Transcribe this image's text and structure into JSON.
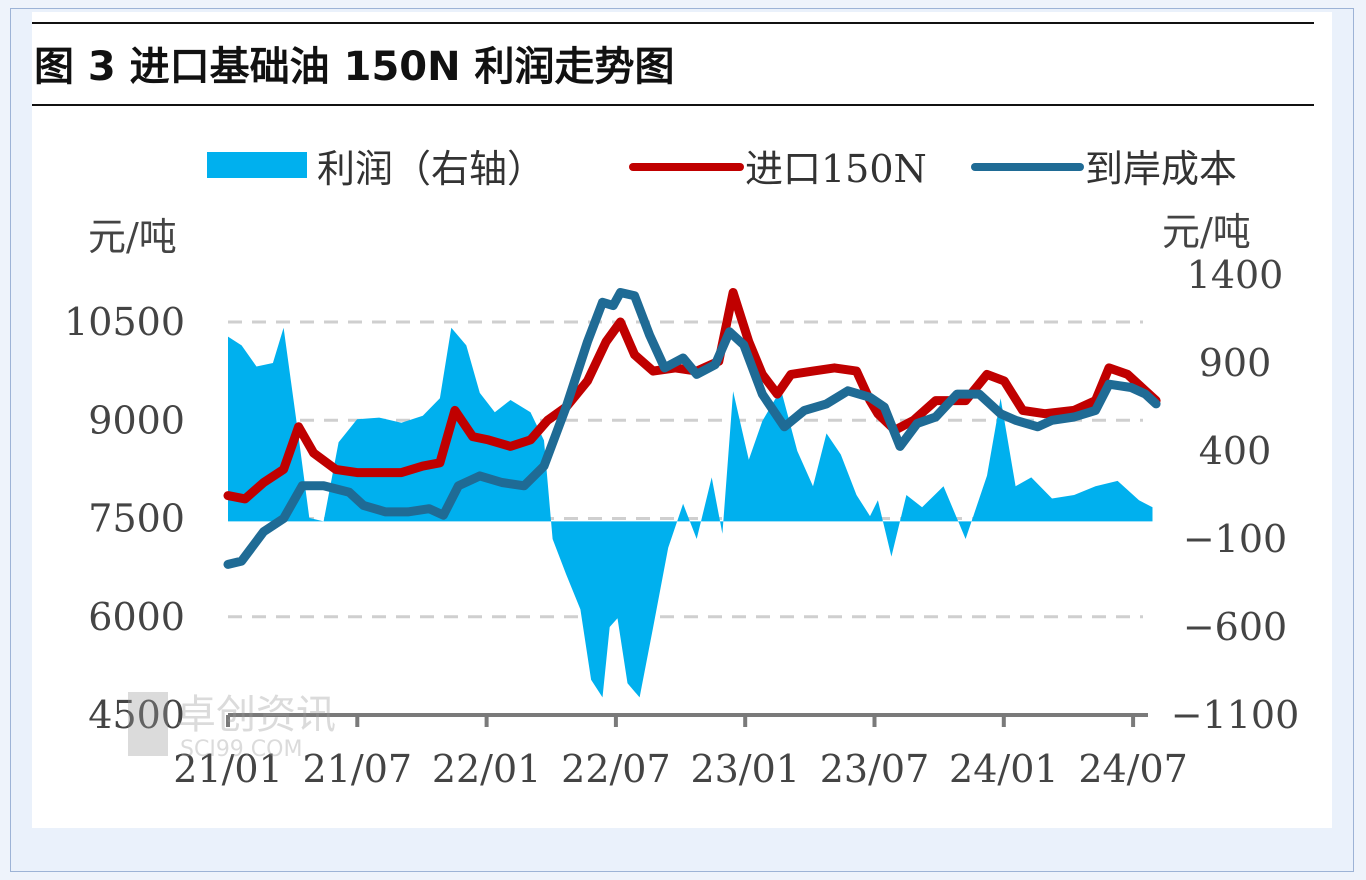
{
  "header": {
    "title": "图 3 进口基础油 150N 利润走势图"
  },
  "watermark": {
    "brand": "卓创资讯",
    "site": "SCI99.COM"
  },
  "chart_data": {
    "type": "line",
    "title": "图 3 进口基础油 150N 利润走势图",
    "y_left_unit": "元/吨",
    "y_right_unit": "元/吨",
    "left_axis": {
      "min": 4500,
      "max": 10500,
      "ticks": [
        4500,
        6000,
        7500,
        9000,
        10500
      ]
    },
    "right_axis": {
      "min": -1100,
      "max": 1400,
      "ticks": [
        -1100,
        -600,
        -100,
        400,
        900,
        1400
      ]
    },
    "x_axis": {
      "ticks": [
        "21/01",
        "21/07",
        "22/01",
        "22/07",
        "23/01",
        "23/07",
        "24/01",
        "24/07"
      ]
    },
    "grid": true,
    "legend_position": "top",
    "colors": {
      "profit": "#00b0ee",
      "import_150n": "#c00000",
      "landed_cost": "#1f6b95"
    },
    "series": [
      {
        "name": "利润（右轴）",
        "style": "area",
        "axis": "right",
        "points": [
          [
            "2021-01-01",
            1050
          ],
          [
            "2021-01-20",
            1000
          ],
          [
            "2021-02-10",
            880
          ],
          [
            "2021-03-05",
            900
          ],
          [
            "2021-03-20",
            1100
          ],
          [
            "2021-04-10",
            480
          ],
          [
            "2021-04-25",
            20
          ],
          [
            "2021-05-15",
            0
          ],
          [
            "2021-06-05",
            450
          ],
          [
            "2021-07-01",
            580
          ],
          [
            "2021-08-01",
            590
          ],
          [
            "2021-09-01",
            560
          ],
          [
            "2021-10-01",
            600
          ],
          [
            "2021-10-25",
            700
          ],
          [
            "2021-11-10",
            1100
          ],
          [
            "2021-12-01",
            1000
          ],
          [
            "2021-12-20",
            730
          ],
          [
            "2022-01-10",
            620
          ],
          [
            "2022-02-01",
            690
          ],
          [
            "2022-03-01",
            620
          ],
          [
            "2022-03-20",
            460
          ],
          [
            "2022-04-01",
            -100
          ],
          [
            "2022-04-20",
            -300
          ],
          [
            "2022-05-10",
            -500
          ],
          [
            "2022-05-25",
            -900
          ],
          [
            "2022-06-10",
            -1000
          ],
          [
            "2022-06-20",
            -600
          ],
          [
            "2022-07-01",
            -550
          ],
          [
            "2022-07-15",
            -920
          ],
          [
            "2022-08-01",
            -1000
          ],
          [
            "2022-08-20",
            -600
          ],
          [
            "2022-09-10",
            -150
          ],
          [
            "2022-10-01",
            100
          ],
          [
            "2022-10-20",
            -100
          ],
          [
            "2022-11-10",
            250
          ],
          [
            "2022-11-25",
            -70
          ],
          [
            "2022-12-10",
            740
          ],
          [
            "2023-01-01",
            350
          ],
          [
            "2023-01-20",
            570
          ],
          [
            "2023-02-15",
            750
          ],
          [
            "2023-03-10",
            400
          ],
          [
            "2023-04-01",
            200
          ],
          [
            "2023-04-20",
            500
          ],
          [
            "2023-05-10",
            380
          ],
          [
            "2023-06-01",
            150
          ],
          [
            "2023-06-20",
            30
          ],
          [
            "2023-07-01",
            120
          ],
          [
            "2023-07-20",
            -200
          ],
          [
            "2023-08-10",
            150
          ],
          [
            "2023-09-01",
            80
          ],
          [
            "2023-10-01",
            200
          ],
          [
            "2023-11-01",
            -100
          ],
          [
            "2023-12-01",
            260
          ],
          [
            "2023-12-20",
            700
          ],
          [
            "2024-01-10",
            200
          ],
          [
            "2024-02-01",
            250
          ],
          [
            "2024-03-01",
            130
          ],
          [
            "2024-04-01",
            150
          ],
          [
            "2024-05-01",
            200
          ],
          [
            "2024-06-01",
            230
          ],
          [
            "2024-07-01",
            120
          ],
          [
            "2024-07-20",
            80
          ]
        ]
      },
      {
        "name": "进口150N",
        "style": "line",
        "axis": "left",
        "points": [
          [
            "2021-01-01",
            7850
          ],
          [
            "2021-01-25",
            7800
          ],
          [
            "2021-02-20",
            8050
          ],
          [
            "2021-03-20",
            8250
          ],
          [
            "2021-04-10",
            8900
          ],
          [
            "2021-05-01",
            8500
          ],
          [
            "2021-06-01",
            8250
          ],
          [
            "2021-07-01",
            8200
          ],
          [
            "2021-08-01",
            8200
          ],
          [
            "2021-09-01",
            8200
          ],
          [
            "2021-10-01",
            8300
          ],
          [
            "2021-10-25",
            8350
          ],
          [
            "2021-11-15",
            9150
          ],
          [
            "2021-12-10",
            8750
          ],
          [
            "2022-01-01",
            8700
          ],
          [
            "2022-02-01",
            8600
          ],
          [
            "2022-03-01",
            8700
          ],
          [
            "2022-03-25",
            9000
          ],
          [
            "2022-04-20",
            9200
          ],
          [
            "2022-05-20",
            9600
          ],
          [
            "2022-06-15",
            10200
          ],
          [
            "2022-07-05",
            10500
          ],
          [
            "2022-07-25",
            10000
          ],
          [
            "2022-08-20",
            9750
          ],
          [
            "2022-09-20",
            9800
          ],
          [
            "2022-10-20",
            9750
          ],
          [
            "2022-11-20",
            9900
          ],
          [
            "2022-12-10",
            10950
          ],
          [
            "2023-01-01",
            10200
          ],
          [
            "2023-01-20",
            9700
          ],
          [
            "2023-02-10",
            9400
          ],
          [
            "2023-03-01",
            9700
          ],
          [
            "2023-04-01",
            9750
          ],
          [
            "2023-05-01",
            9800
          ],
          [
            "2023-06-01",
            9750
          ],
          [
            "2023-06-20",
            9300
          ],
          [
            "2023-07-01",
            9100
          ],
          [
            "2023-07-25",
            8850
          ],
          [
            "2023-08-20",
            9000
          ],
          [
            "2023-09-20",
            9300
          ],
          [
            "2023-11-01",
            9300
          ],
          [
            "2023-12-01",
            9700
          ],
          [
            "2023-12-25",
            9600
          ],
          [
            "2024-01-20",
            9150
          ],
          [
            "2024-02-20",
            9100
          ],
          [
            "2024-04-01",
            9150
          ],
          [
            "2024-05-01",
            9300
          ],
          [
            "2024-05-20",
            9800
          ],
          [
            "2024-06-15",
            9700
          ],
          [
            "2024-07-10",
            9450
          ],
          [
            "2024-07-25",
            9300
          ]
        ]
      },
      {
        "name": "到岸成本",
        "style": "line",
        "axis": "left",
        "points": [
          [
            "2021-01-01",
            6800
          ],
          [
            "2021-01-20",
            6850
          ],
          [
            "2021-02-20",
            7300
          ],
          [
            "2021-03-20",
            7500
          ],
          [
            "2021-04-15",
            8000
          ],
          [
            "2021-05-15",
            8000
          ],
          [
            "2021-06-20",
            7900
          ],
          [
            "2021-07-10",
            7700
          ],
          [
            "2021-08-10",
            7600
          ],
          [
            "2021-09-10",
            7600
          ],
          [
            "2021-10-10",
            7650
          ],
          [
            "2021-10-30",
            7550
          ],
          [
            "2021-11-20",
            8000
          ],
          [
            "2021-12-20",
            8150
          ],
          [
            "2022-01-20",
            8050
          ],
          [
            "2022-02-20",
            8000
          ],
          [
            "2022-03-20",
            8300
          ],
          [
            "2022-04-20",
            9200
          ],
          [
            "2022-05-20",
            10200
          ],
          [
            "2022-06-10",
            10800
          ],
          [
            "2022-06-25",
            10750
          ],
          [
            "2022-07-05",
            10950
          ],
          [
            "2022-07-25",
            10900
          ],
          [
            "2022-08-15",
            10300
          ],
          [
            "2022-09-05",
            9800
          ],
          [
            "2022-10-01",
            9950
          ],
          [
            "2022-10-20",
            9700
          ],
          [
            "2022-11-15",
            9850
          ],
          [
            "2022-12-05",
            10350
          ],
          [
            "2022-12-25",
            10150
          ],
          [
            "2023-01-20",
            9400
          ],
          [
            "2023-02-20",
            8900
          ],
          [
            "2023-03-20",
            9150
          ],
          [
            "2023-04-20",
            9250
          ],
          [
            "2023-05-20",
            9450
          ],
          [
            "2023-06-20",
            9350
          ],
          [
            "2023-07-10",
            9200
          ],
          [
            "2023-08-01",
            8600
          ],
          [
            "2023-08-25",
            8950
          ],
          [
            "2023-09-20",
            9050
          ],
          [
            "2023-10-20",
            9400
          ],
          [
            "2023-11-20",
            9400
          ],
          [
            "2023-12-20",
            9100
          ],
          [
            "2024-01-10",
            9000
          ],
          [
            "2024-02-10",
            8900
          ],
          [
            "2024-03-01",
            9000
          ],
          [
            "2024-04-01",
            9050
          ],
          [
            "2024-05-01",
            9150
          ],
          [
            "2024-05-20",
            9550
          ],
          [
            "2024-06-20",
            9500
          ],
          [
            "2024-07-10",
            9400
          ],
          [
            "2024-07-25",
            9250
          ]
        ]
      }
    ]
  }
}
